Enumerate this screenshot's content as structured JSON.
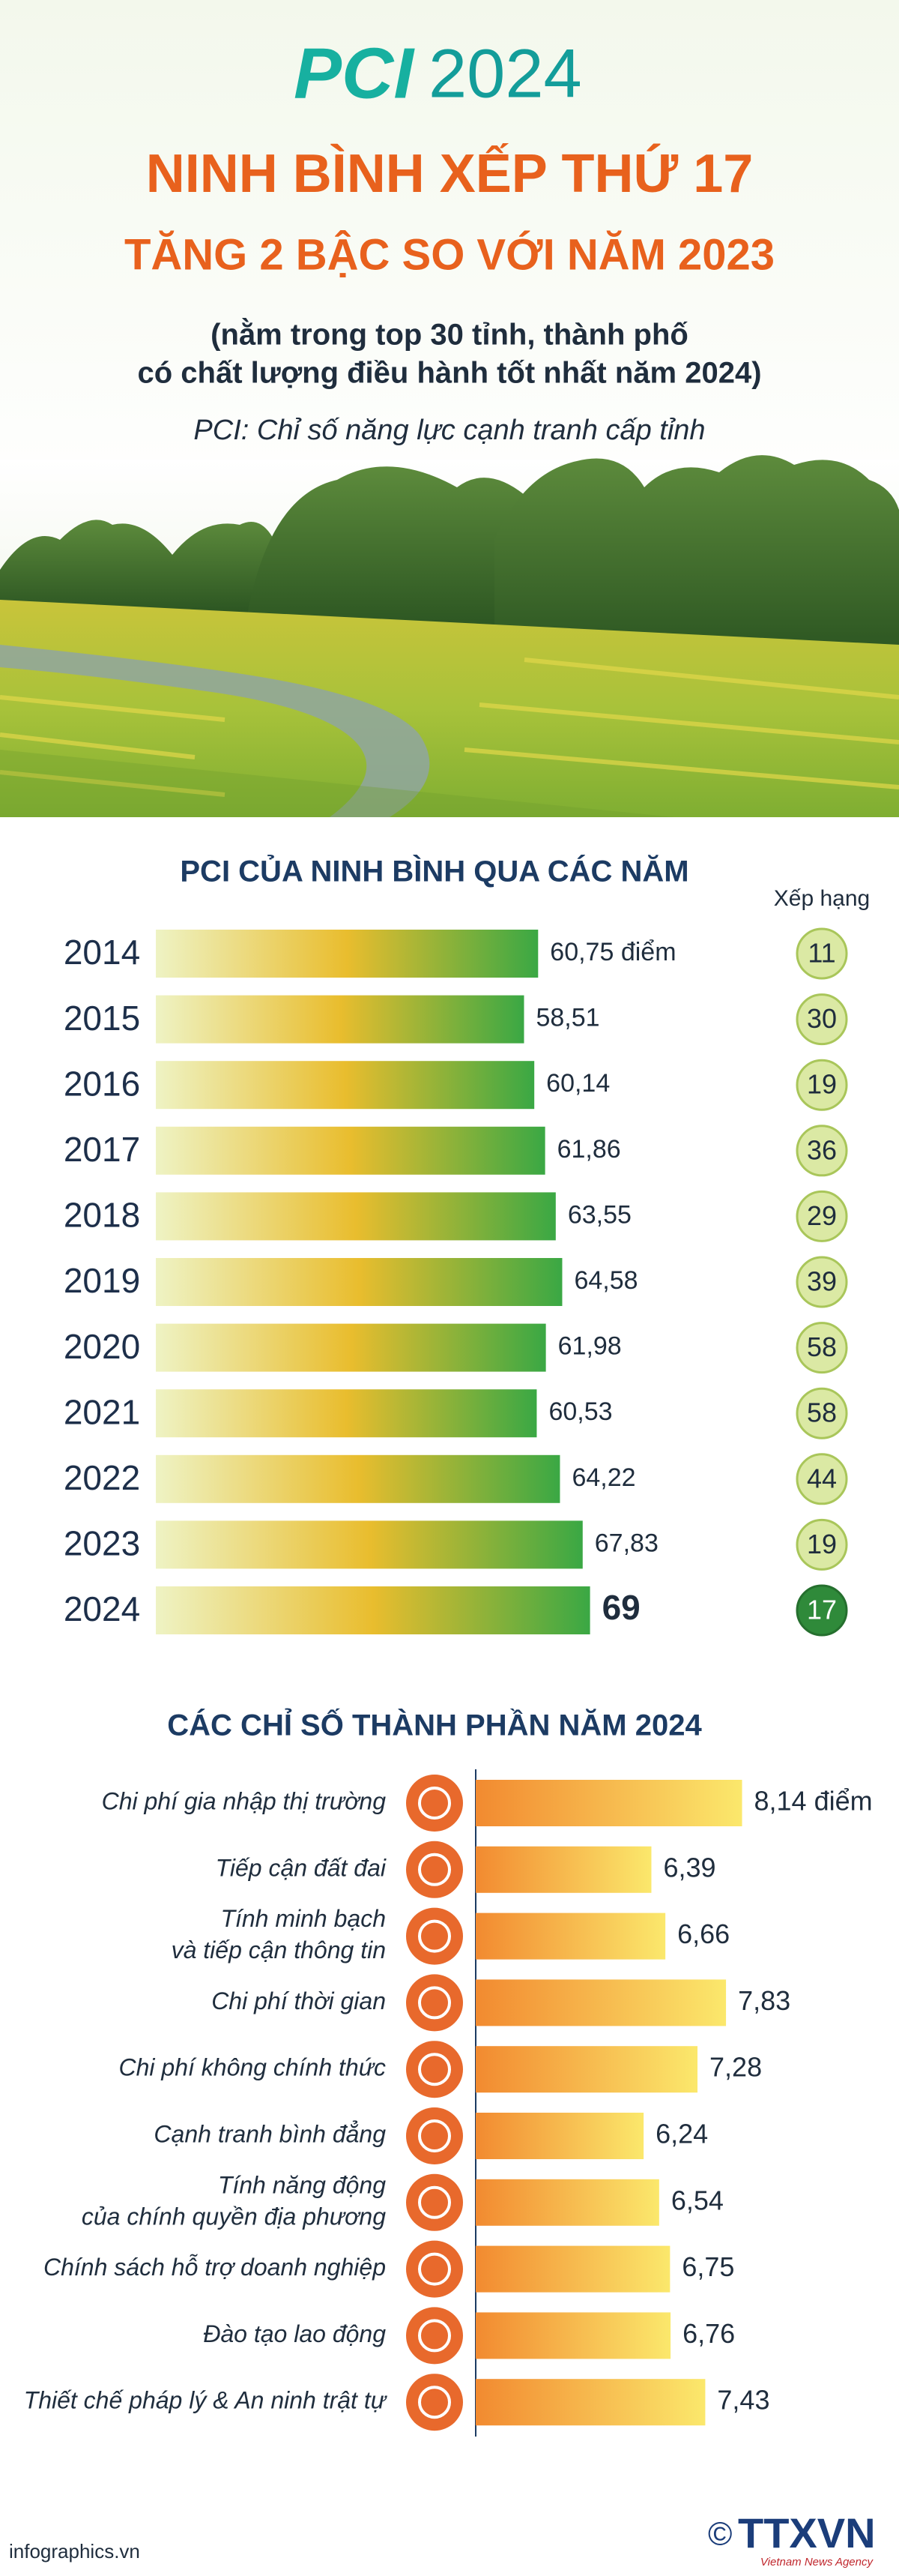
{
  "header": {
    "logo": "PCI",
    "year": "2024",
    "title": "NINH BÌNH XẾP THỨ 17",
    "subtitle": "TĂNG 2 BẬC SO VỚI NĂM 2023",
    "note_lines": [
      "(nằm trong top 30 tỉnh, thành phố",
      "có chất lượng điều hành tốt nhất năm 2024)"
    ],
    "definition": "PCI: Chỉ số năng lực cạnh tranh cấp tỉnh"
  },
  "chart_data": [
    {
      "type": "bar",
      "orientation": "horizontal",
      "title": "PCI CỦA NINH BÌNH QUA CÁC NĂM",
      "categories": [
        "2014",
        "2015",
        "2016",
        "2017",
        "2018",
        "2019",
        "2020",
        "2021",
        "2022",
        "2023",
        "2024"
      ],
      "values": [
        60.75,
        58.51,
        60.14,
        61.86,
        63.55,
        64.58,
        61.98,
        60.53,
        64.22,
        67.83,
        69
      ],
      "value_labels": [
        "60,75 điểm",
        "58,51",
        "60,14",
        "61,86",
        "63,55",
        "64,58",
        "61,98",
        "60,53",
        "64,22",
        "67,83",
        "69"
      ],
      "xlim": [
        0,
        90
      ],
      "colors": [
        "#eef3c4",
        "#e9bd2e",
        "#3aa844"
      ],
      "rank_title": "Xếp hạng",
      "ranks": [
        11,
        30,
        19,
        36,
        29,
        39,
        58,
        58,
        44,
        19,
        17
      ]
    },
    {
      "type": "bar",
      "orientation": "horizontal",
      "title": "CÁC CHỈ SỐ THÀNH PHẦN NĂM 2024",
      "categories": [
        [
          "Chi phí gia nhập thị trường"
        ],
        [
          "Tiếp cận đất đai"
        ],
        [
          "Tính minh bạch",
          "và tiếp cận thông tin"
        ],
        [
          "Chi phí thời gian"
        ],
        [
          "Chi phí không chính thức"
        ],
        [
          "Cạnh tranh bình đẳng"
        ],
        [
          "Tính năng động",
          "của chính quyền địa phương"
        ],
        [
          "Chính sách hỗ trợ doanh nghiệp"
        ],
        [
          "Đào tạo lao động"
        ],
        [
          "Thiết chế pháp lý & An ninh trật tự"
        ]
      ],
      "values": [
        8.14,
        6.39,
        6.66,
        7.83,
        7.28,
        6.24,
        6.54,
        6.75,
        6.76,
        7.43
      ],
      "value_labels": [
        "8,14 điểm",
        "6,39",
        "6,66",
        "7,83",
        "7,28",
        "6,24",
        "6,54",
        "6,75",
        "6,76",
        "7,43"
      ],
      "xlim": [
        3,
        9
      ],
      "colors": [
        "#f28a30",
        "#fbe86c"
      ]
    }
  ],
  "footer": {
    "source": "infographics.vn",
    "copyright": "©",
    "agency": "TTXVN",
    "agency_en": "Vietnam News Agency"
  }
}
